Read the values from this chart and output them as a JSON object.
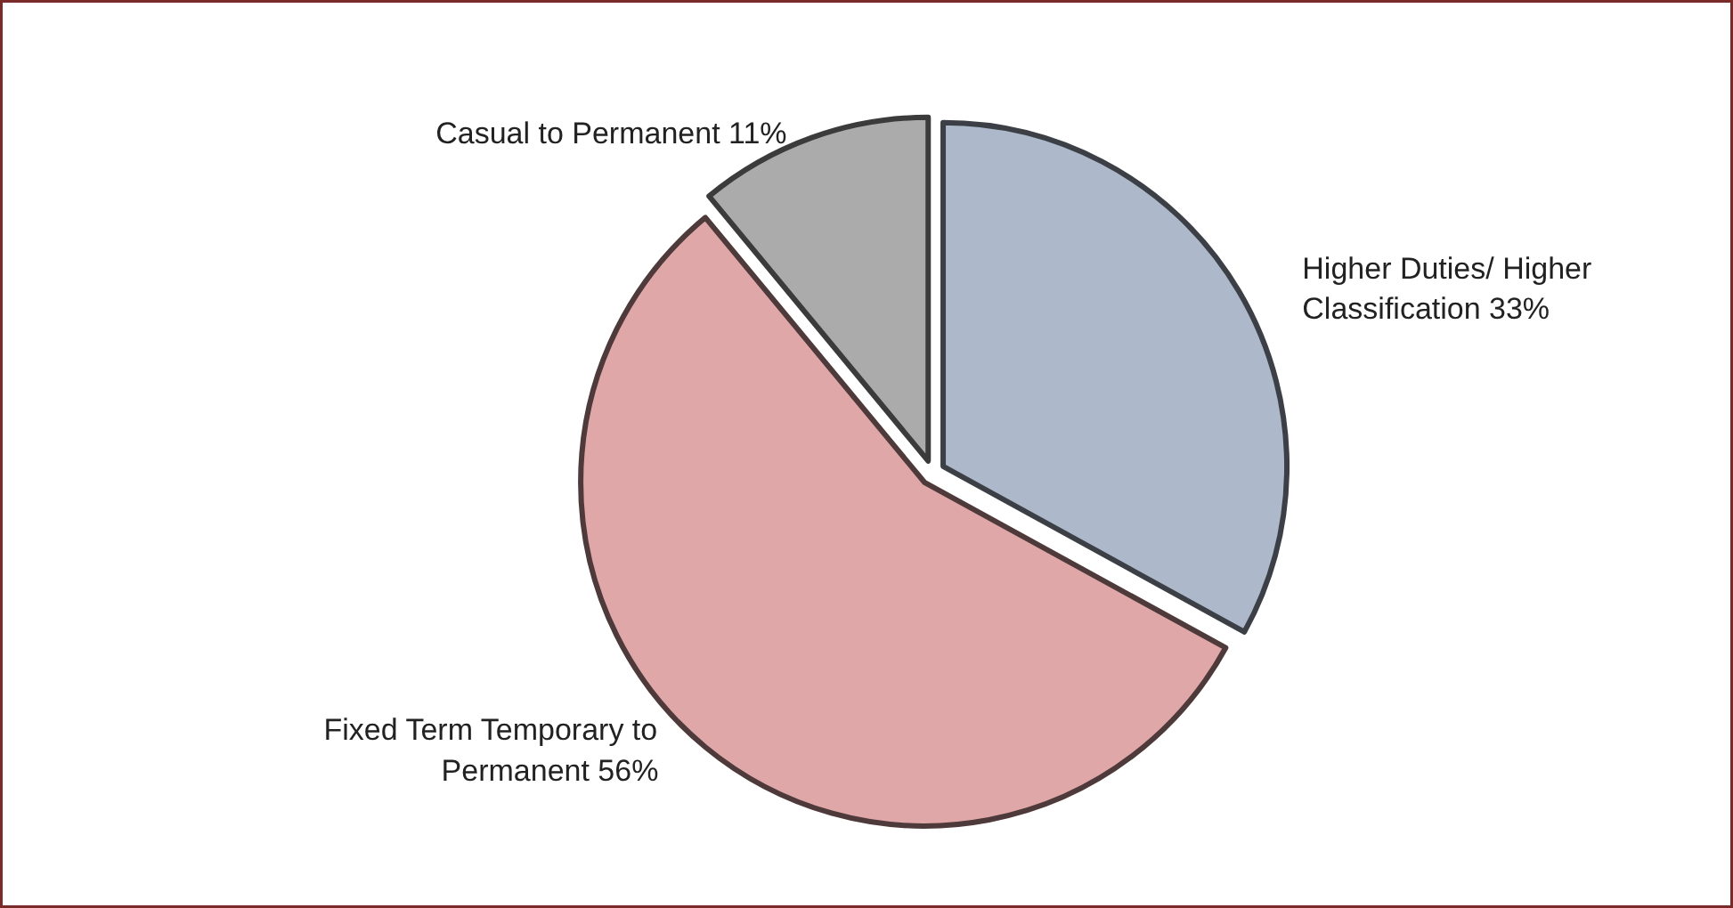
{
  "chart_data": {
    "type": "pie",
    "categories": [
      "Higher Duties/ Higher Classification",
      "Fixed Term Temporary to Permanent",
      "Casual to Permanent"
    ],
    "values": [
      33,
      56,
      11
    ],
    "value_labels": [
      "33%",
      "56%",
      "11%"
    ],
    "colors": [
      "#adb9ca",
      "#e0a7a8",
      "#ababab"
    ]
  }
}
